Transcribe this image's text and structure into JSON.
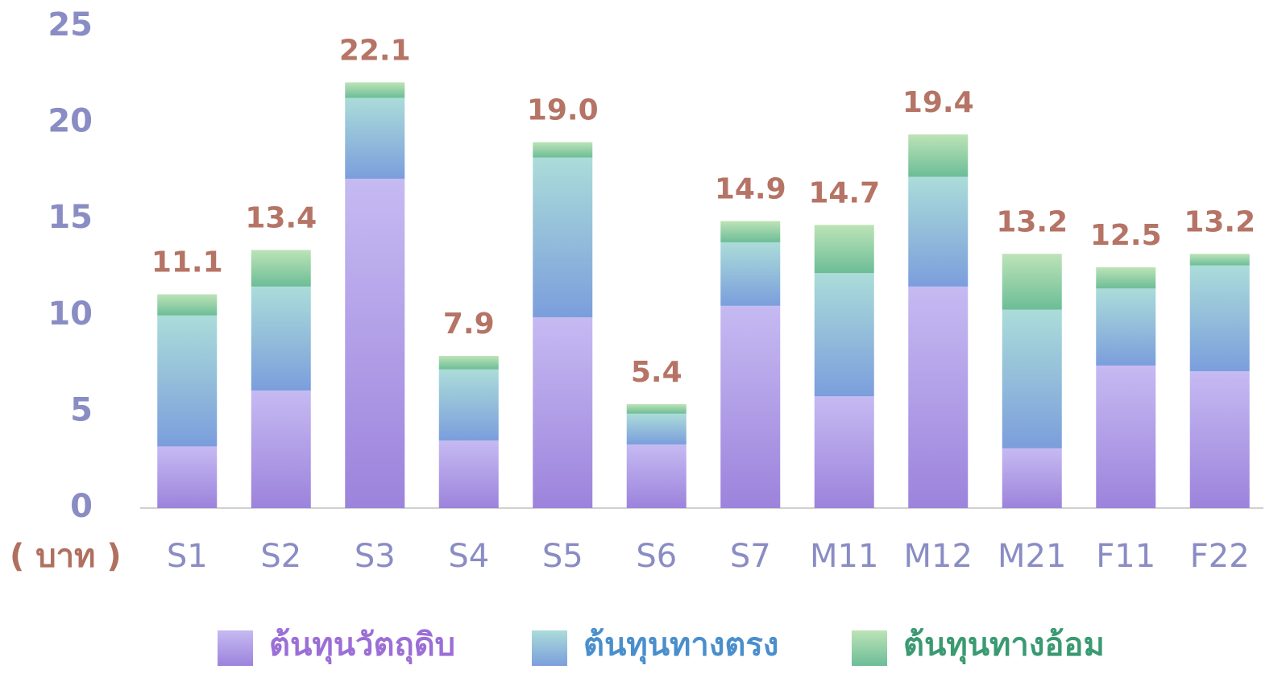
{
  "chart_data": {
    "type": "stacked_bar",
    "y_label": "( บาท )",
    "categories": [
      "S1",
      "S2",
      "S3",
      "S4",
      "S5",
      "S6",
      "S7",
      "M11",
      "M12",
      "M21",
      "F11",
      "F22"
    ],
    "series": [
      {
        "name": "ต้นทุนวัตถุดิบ",
        "color": [
          "#c6baf2",
          "#9c83dc"
        ],
        "text_color": "#9b6fd6",
        "values": [
          3.2,
          6.1,
          17.1,
          3.5,
          9.9,
          3.3,
          10.5,
          5.8,
          11.5,
          3.1,
          7.4,
          7.1
        ]
      },
      {
        "name": "ต้นทุนทางตรง",
        "color": [
          "#abdcd9",
          "#7b9edc"
        ],
        "text_color": "#4a8fcc",
        "values": [
          6.8,
          5.4,
          4.2,
          3.7,
          8.3,
          1.6,
          3.3,
          6.4,
          5.7,
          7.2,
          4.0,
          5.5
        ]
      },
      {
        "name": "ต้นทุนทางอ้อม",
        "color": [
          "#bde3b7",
          "#6cbd97"
        ],
        "text_color": "#3a9a72",
        "values": [
          1.1,
          1.9,
          0.8,
          0.7,
          0.8,
          0.5,
          1.1,
          2.5,
          2.2,
          2.9,
          1.1,
          0.6
        ]
      }
    ],
    "totals": [
      11.1,
      13.4,
      22.1,
      7.9,
      19.0,
      5.4,
      14.9,
      14.7,
      19.4,
      13.2,
      12.5,
      13.2
    ],
    "total_labels": [
      "11.1",
      "13.4",
      "22.1",
      "7.9",
      "19.0",
      "5.4",
      "14.9",
      "14.7",
      "19.4",
      "13.2",
      "12.5",
      "13.2"
    ],
    "ylim": [
      0,
      25
    ],
    "yticks": [
      0,
      5,
      10,
      15,
      20,
      25
    ],
    "grid": false
  }
}
